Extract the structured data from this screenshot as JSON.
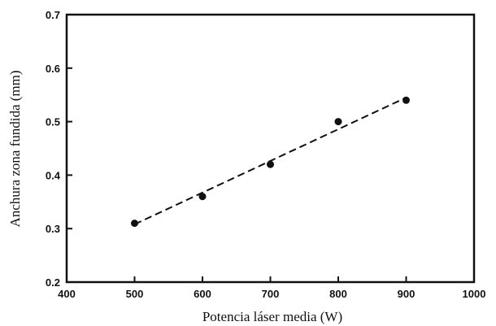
{
  "chart_data": {
    "type": "scatter",
    "title": "",
    "xlabel": "Potencia láser media (W)",
    "ylabel": "Anchura zona fundida (mm)",
    "xlim": [
      400,
      1000
    ],
    "ylim": [
      0.2,
      0.7
    ],
    "xticks": [
      400,
      500,
      600,
      700,
      800,
      900,
      1000
    ],
    "yticks": [
      0.2,
      0.3,
      0.4,
      0.5,
      0.6,
      0.7
    ],
    "xtick_labels": [
      "400",
      "500",
      "600",
      "700",
      "800",
      "900",
      "1000"
    ],
    "ytick_labels": [
      "0.2",
      "0.3",
      "0.4",
      "0.5",
      "0.6",
      "0.7"
    ],
    "grid": false,
    "series": [
      {
        "x": [
          500,
          600,
          700,
          800,
          900
        ],
        "y": [
          0.31,
          0.36,
          0.42,
          0.5,
          0.54
        ]
      }
    ],
    "trendline": {
      "style": "dashed",
      "x": [
        500,
        900
      ],
      "y": [
        0.308,
        0.545
      ]
    },
    "colors": {
      "ink": "#111111",
      "background": "#ffffff"
    }
  }
}
